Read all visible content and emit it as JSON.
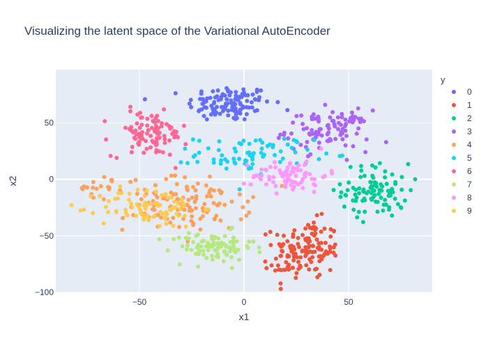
{
  "chart_data": {
    "type": "scatter",
    "title": "Visualizing the latent space of the Variational AutoEncoder",
    "xlabel": "x1",
    "ylabel": "x2",
    "xlim": [
      -90,
      90
    ],
    "ylim": [
      -100,
      97
    ],
    "xticks": [
      -50,
      0,
      50
    ],
    "yticks": [
      -100,
      -50,
      0,
      50
    ],
    "grid": true,
    "legend": {
      "title": "y",
      "placement": "right"
    },
    "series": [
      {
        "name": "0",
        "color": "#636efa",
        "clusters": [
          {
            "cx": -7,
            "cy": 67,
            "sx": 10,
            "sy": 8,
            "n": 120
          }
        ]
      },
      {
        "name": "1",
        "color": "#EF553B",
        "clusters": [
          {
            "cx": 30,
            "cy": -62,
            "sx": 8,
            "sy": 13,
            "n": 130
          },
          {
            "cx": 16,
            "cy": -78,
            "sx": 3,
            "sy": 2,
            "n": 12
          }
        ]
      },
      {
        "name": "2",
        "color": "#00cc96",
        "clusters": [
          {
            "cx": 63,
            "cy": -10,
            "sx": 8,
            "sy": 12,
            "n": 95
          }
        ]
      },
      {
        "name": "3",
        "color": "#ab63fa",
        "clusters": [
          {
            "cx": 40,
            "cy": 43,
            "sx": 10,
            "sy": 9,
            "n": 100
          }
        ]
      },
      {
        "name": "4",
        "color": "#FFA15A",
        "clusters": [
          {
            "cx": -27,
            "cy": -22,
            "sx": 15,
            "sy": 12,
            "n": 120
          },
          {
            "cx": -68,
            "cy": -8,
            "sx": 6,
            "sy": 5,
            "n": 20
          }
        ]
      },
      {
        "name": "5",
        "color": "#19d3f3",
        "clusters": [
          {
            "cx": 5,
            "cy": 22,
            "sx": 14,
            "sy": 8,
            "n": 80
          }
        ]
      },
      {
        "name": "6",
        "color": "#FF6692",
        "clusters": [
          {
            "cx": -45,
            "cy": 40,
            "sx": 9,
            "sy": 10,
            "n": 95
          }
        ]
      },
      {
        "name": "7",
        "color": "#B6E880",
        "clusters": [
          {
            "cx": -15,
            "cy": -60,
            "sx": 10,
            "sy": 7,
            "n": 90
          }
        ]
      },
      {
        "name": "8",
        "color": "#FF97FF",
        "clusters": [
          {
            "cx": 22,
            "cy": 3,
            "sx": 9,
            "sy": 7,
            "n": 75
          }
        ]
      },
      {
        "name": "9",
        "color": "#FECB52",
        "clusters": [
          {
            "cx": -45,
            "cy": -25,
            "sx": 12,
            "sy": 9,
            "n": 85
          }
        ]
      }
    ]
  }
}
